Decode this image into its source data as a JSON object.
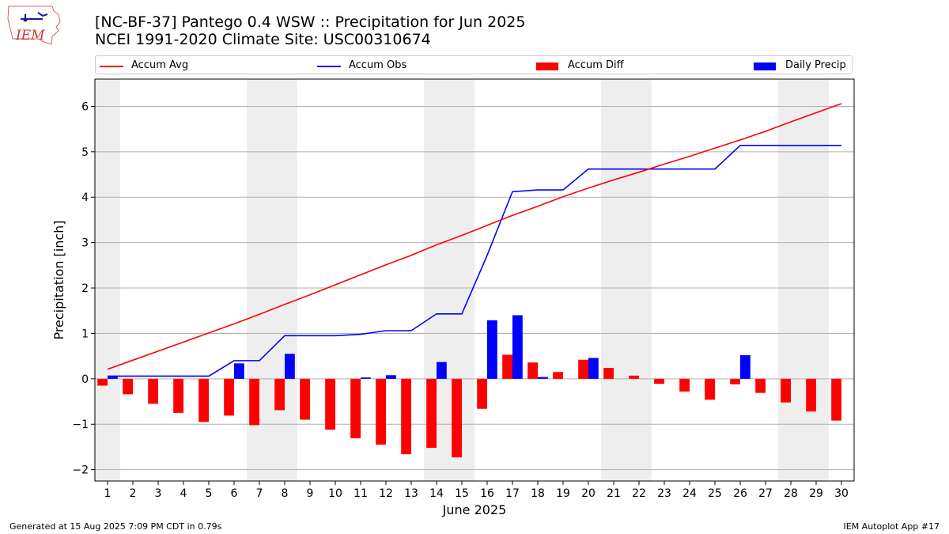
{
  "header": {
    "logo_text": "IEM",
    "title_line1": "[NC-BF-37] Pantego 0.4 WSW :: Precipitation for Jun 2025",
    "title_line2": "NCEI 1991-2020 Climate Site: USC00310674"
  },
  "footer": {
    "left": "Generated at 15 Aug 2025 7:09 PM CDT in 0.79s",
    "right": "IEM Autoplot App #17"
  },
  "colors": {
    "avg": "#ff0000",
    "obs": "#0000ff",
    "diff": "#ff0000",
    "daily": "#0000ff",
    "weekend_shade": "#eeeeee",
    "grid": "#b0b0b0"
  },
  "chart_data": {
    "type": "bar",
    "xlabel": "June 2025",
    "ylabel": "Precipitation [inch]",
    "ylim": [
      -2.25,
      6.6
    ],
    "xlim": [
      0.5,
      30.5
    ],
    "yticks": [
      -2,
      -1,
      0,
      1,
      2,
      3,
      4,
      5,
      6
    ],
    "ytick_labels": [
      "−2",
      "−1",
      "0",
      "1",
      "2",
      "3",
      "4",
      "5",
      "6"
    ],
    "grid": "horizontal",
    "legend_position": "top",
    "x": [
      1,
      2,
      3,
      4,
      5,
      6,
      7,
      8,
      9,
      10,
      11,
      12,
      13,
      14,
      15,
      16,
      17,
      18,
      19,
      20,
      21,
      22,
      23,
      24,
      25,
      26,
      27,
      28,
      29,
      30
    ],
    "shaded_days": [
      1,
      7,
      8,
      14,
      15,
      21,
      22,
      28,
      29
    ],
    "series": [
      {
        "name": "Accum Avg",
        "kind": "line",
        "values": [
          0.21,
          0.41,
          0.61,
          0.81,
          1.01,
          1.21,
          1.42,
          1.64,
          1.85,
          2.07,
          2.29,
          2.51,
          2.72,
          2.95,
          3.16,
          3.38,
          3.6,
          3.8,
          4.01,
          4.2,
          4.38,
          4.55,
          4.73,
          4.9,
          5.08,
          5.26,
          5.45,
          5.66,
          5.86,
          6.06
        ]
      },
      {
        "name": "Accum Obs",
        "kind": "line",
        "values": [
          0.06,
          0.06,
          0.06,
          0.06,
          0.06,
          0.4,
          0.4,
          0.95,
          0.95,
          0.95,
          0.98,
          1.06,
          1.06,
          1.43,
          1.43,
          2.72,
          4.12,
          4.16,
          4.16,
          4.62,
          4.62,
          4.62,
          4.62,
          4.62,
          4.62,
          5.14,
          5.14,
          5.14,
          5.14,
          5.14
        ]
      },
      {
        "name": "Accum Diff",
        "kind": "bar",
        "values": [
          -0.15,
          -0.34,
          -0.55,
          -0.75,
          -0.95,
          -0.81,
          -1.02,
          -0.69,
          -0.9,
          -1.12,
          -1.31,
          -1.45,
          -1.66,
          -1.52,
          -1.73,
          -0.66,
          0.53,
          0.36,
          0.15,
          0.42,
          0.24,
          0.07,
          -0.11,
          -0.28,
          -0.46,
          -0.12,
          -0.31,
          -0.52,
          -0.72,
          -0.92
        ]
      },
      {
        "name": "Daily Precip",
        "kind": "bar",
        "values": [
          0.06,
          0,
          0,
          0,
          0,
          0.34,
          0,
          0.55,
          0,
          0,
          0.03,
          0.08,
          0,
          0.37,
          0,
          1.29,
          1.4,
          0.04,
          0,
          0.46,
          0,
          0,
          0,
          0,
          0,
          0.52,
          0,
          0,
          0,
          0
        ]
      }
    ]
  }
}
